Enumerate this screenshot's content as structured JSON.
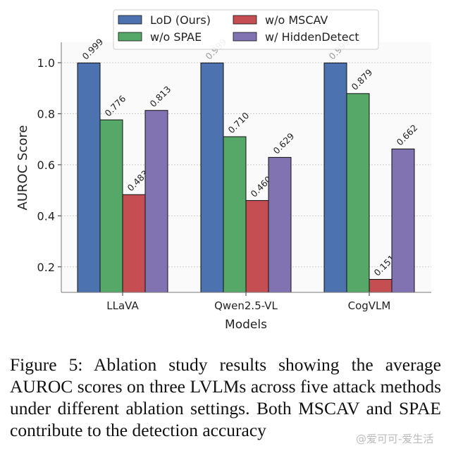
{
  "chart_data": {
    "type": "bar",
    "categories": [
      "LLaVA",
      "Qwen2.5-VL",
      "CogVLM"
    ],
    "series": [
      {
        "name": "LoD (Ours)",
        "color": "#4c72b0",
        "values": [
          0.999,
          0.999,
          0.999
        ]
      },
      {
        "name": "w/o SPAE",
        "color": "#55a868",
        "values": [
          0.776,
          0.71,
          0.879
        ]
      },
      {
        "name": "w/o MSCAV",
        "color": "#c44e52",
        "values": [
          0.483,
          0.46,
          0.151
        ]
      },
      {
        "name": "w/ HiddenDetect",
        "color": "#8172b2",
        "values": [
          0.813,
          0.629,
          0.662
        ]
      }
    ],
    "xlabel": "Models",
    "ylabel": "AUROC Score",
    "ylim": [
      0.1,
      1.08
    ],
    "yticks": [
      "0.2",
      "0.4",
      "0.6",
      "0.8",
      "1.0"
    ],
    "grid": "horizontal dotted",
    "legend": "top-center, 2 columns",
    "data_labels": true
  },
  "caption": "Figure 5: Ablation study results showing the average AUROC scores on three LVLMs across five attack methods under different ablation settings. Both MSCAV and SPAE contribute to the detection accuracy",
  "watermark": "@爱可可-爱生活"
}
